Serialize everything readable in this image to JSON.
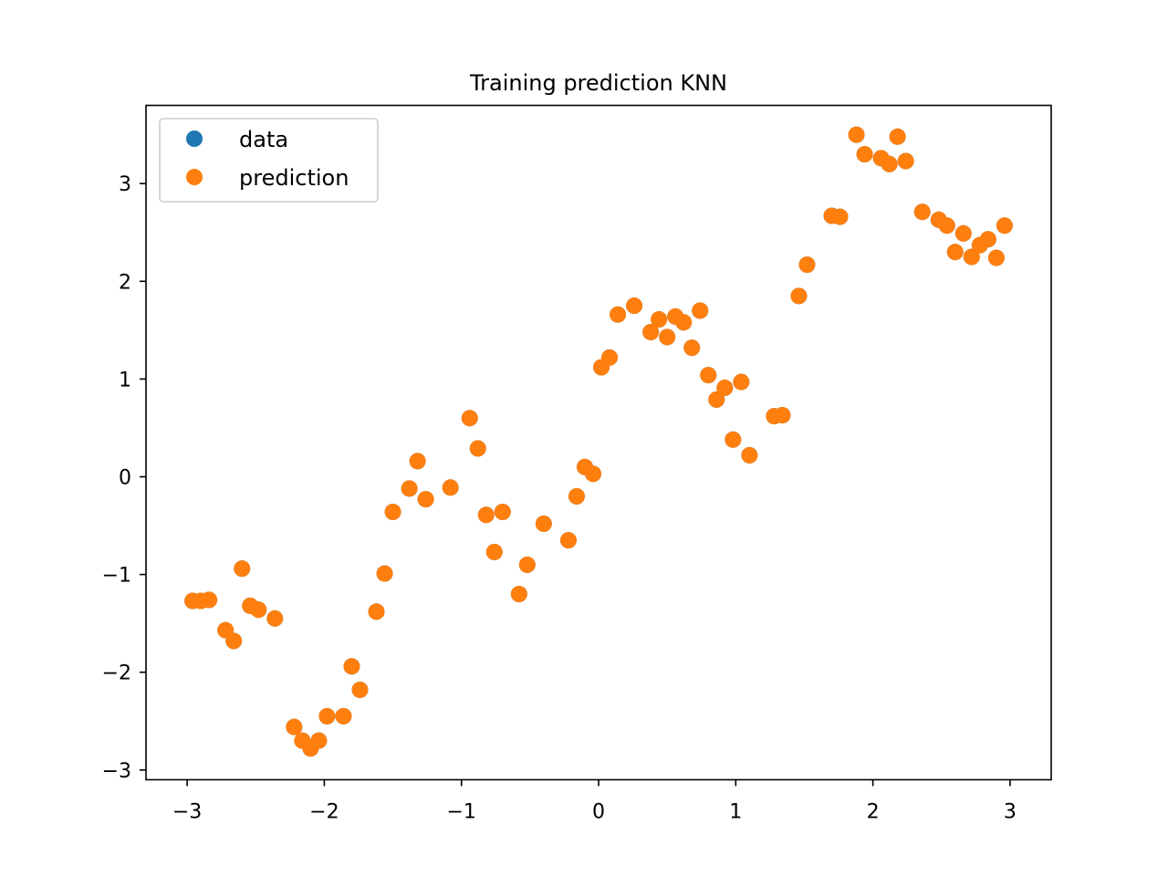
{
  "chart_data": {
    "type": "scatter",
    "title": "Training prediction KNN",
    "xlabel": "",
    "ylabel": "",
    "xlim": [
      -3.3,
      3.3
    ],
    "ylim": [
      -3.1,
      3.8
    ],
    "xticks": [
      -3,
      -2,
      -1,
      0,
      1,
      2,
      3
    ],
    "xtick_labels": [
      "−3",
      "−2",
      "−1",
      "0",
      "1",
      "2",
      "3"
    ],
    "yticks": [
      -3,
      -2,
      -1,
      0,
      1,
      2,
      3
    ],
    "ytick_labels": [
      "−3",
      "−2",
      "−1",
      "0",
      "1",
      "2",
      "3"
    ],
    "grid": false,
    "legend_position": "top-left",
    "series": [
      {
        "name": "data",
        "color": "#1f77b4",
        "x": [
          -2.96,
          -2.9,
          -2.84,
          -2.72,
          -2.66,
          -2.6,
          -2.54,
          -2.48,
          -2.36,
          -2.22,
          -2.16,
          -2.1,
          -2.04,
          -1.98,
          -1.86,
          -1.8,
          -1.74,
          -1.62,
          -1.56,
          -1.5,
          -1.38,
          -1.32,
          -1.26,
          -1.08,
          -0.94,
          -0.88,
          -0.82,
          -0.76,
          -0.7,
          -0.58,
          -0.52,
          -0.4,
          -0.22,
          -0.16,
          -0.1,
          -0.04,
          0.02,
          0.08,
          0.14,
          0.26,
          0.38,
          0.44,
          0.5,
          0.56,
          0.62,
          0.68,
          0.74,
          0.8,
          0.86,
          0.92,
          0.98,
          1.04,
          1.1,
          1.28,
          1.34,
          1.46,
          1.52,
          1.7,
          1.76,
          1.88,
          1.94,
          2.06,
          2.12,
          2.18,
          2.24,
          2.36,
          2.48,
          2.54,
          2.6,
          2.66,
          2.72,
          2.78,
          2.84,
          2.9,
          2.96
        ],
        "y": [
          -1.27,
          -1.27,
          -1.26,
          -1.57,
          -1.68,
          -0.94,
          -1.32,
          -1.36,
          -1.45,
          -2.56,
          -2.7,
          -2.78,
          -2.7,
          -2.45,
          -2.45,
          -1.94,
          -2.18,
          -1.38,
          -0.99,
          -0.36,
          -0.12,
          0.16,
          -0.23,
          -0.11,
          0.6,
          0.29,
          -0.39,
          -0.77,
          -0.36,
          -1.2,
          -0.9,
          -0.48,
          -0.65,
          -0.2,
          0.1,
          0.03,
          1.12,
          1.22,
          1.66,
          1.75,
          1.48,
          1.61,
          1.43,
          1.64,
          1.58,
          1.32,
          1.7,
          1.04,
          0.79,
          0.91,
          0.38,
          0.97,
          0.22,
          0.62,
          0.63,
          1.85,
          2.17,
          2.67,
          2.66,
          3.5,
          3.3,
          3.26,
          3.2,
          3.48,
          3.23,
          2.71,
          2.63,
          2.57,
          2.3,
          2.49,
          2.25,
          2.37,
          2.43,
          2.24,
          2.57
        ]
      },
      {
        "name": "prediction",
        "color": "#ff7f0e",
        "x": [
          -2.96,
          -2.9,
          -2.84,
          -2.72,
          -2.66,
          -2.6,
          -2.54,
          -2.48,
          -2.36,
          -2.22,
          -2.16,
          -2.1,
          -2.04,
          -1.98,
          -1.86,
          -1.8,
          -1.74,
          -1.62,
          -1.56,
          -1.5,
          -1.38,
          -1.32,
          -1.26,
          -1.08,
          -0.94,
          -0.88,
          -0.82,
          -0.76,
          -0.7,
          -0.58,
          -0.52,
          -0.4,
          -0.22,
          -0.16,
          -0.1,
          -0.04,
          0.02,
          0.08,
          0.14,
          0.26,
          0.38,
          0.44,
          0.5,
          0.56,
          0.62,
          0.68,
          0.74,
          0.8,
          0.86,
          0.92,
          0.98,
          1.04,
          1.1,
          1.28,
          1.34,
          1.46,
          1.52,
          1.7,
          1.76,
          1.88,
          1.94,
          2.06,
          2.12,
          2.18,
          2.24,
          2.36,
          2.48,
          2.54,
          2.6,
          2.66,
          2.72,
          2.78,
          2.84,
          2.9,
          2.96
        ],
        "y": [
          -1.27,
          -1.27,
          -1.26,
          -1.57,
          -1.68,
          -0.94,
          -1.32,
          -1.36,
          -1.45,
          -2.56,
          -2.7,
          -2.78,
          -2.7,
          -2.45,
          -2.45,
          -1.94,
          -2.18,
          -1.38,
          -0.99,
          -0.36,
          -0.12,
          0.16,
          -0.23,
          -0.11,
          0.6,
          0.29,
          -0.39,
          -0.77,
          -0.36,
          -1.2,
          -0.9,
          -0.48,
          -0.65,
          -0.2,
          0.1,
          0.03,
          1.12,
          1.22,
          1.66,
          1.75,
          1.48,
          1.61,
          1.43,
          1.64,
          1.58,
          1.32,
          1.7,
          1.04,
          0.79,
          0.91,
          0.38,
          0.97,
          0.22,
          0.62,
          0.63,
          1.85,
          2.17,
          2.67,
          2.66,
          3.5,
          3.3,
          3.26,
          3.2,
          3.48,
          3.23,
          2.71,
          2.63,
          2.57,
          2.3,
          2.49,
          2.25,
          2.37,
          2.43,
          2.24,
          2.57
        ]
      }
    ]
  }
}
